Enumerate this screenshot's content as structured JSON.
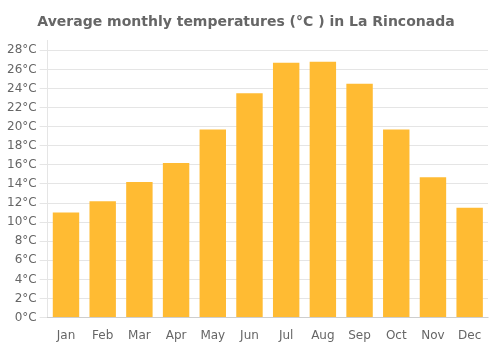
{
  "chart_data": {
    "type": "bar",
    "title": "Average monthly temperatures (°C ) in La Rinconada",
    "categories": [
      "Jan",
      "Feb",
      "Mar",
      "Apr",
      "May",
      "Jun",
      "Jul",
      "Aug",
      "Sep",
      "Oct",
      "Nov",
      "Dec"
    ],
    "values": [
      11.0,
      12.2,
      14.2,
      16.2,
      19.7,
      23.5,
      26.7,
      26.8,
      24.5,
      19.7,
      14.7,
      11.5
    ],
    "color": "#FFBB33",
    "ylim": [
      0,
      29
    ],
    "yticks": [
      {
        "value": 0,
        "label": "0°C"
      },
      {
        "value": 2,
        "label": "2°C"
      },
      {
        "value": 4,
        "label": "4°C"
      },
      {
        "value": 6,
        "label": "6°C"
      },
      {
        "value": 8,
        "label": "8°C"
      },
      {
        "value": 10,
        "label": "10°C"
      },
      {
        "value": 12,
        "label": "12°C"
      },
      {
        "value": 14,
        "label": "14°C"
      },
      {
        "value": 16,
        "label": "16°C"
      },
      {
        "value": 18,
        "label": "18°C"
      },
      {
        "value": 20,
        "label": "20°C"
      },
      {
        "value": 22,
        "label": "22°C"
      },
      {
        "value": 24,
        "label": "24°C"
      },
      {
        "value": 26,
        "label": "26°C"
      },
      {
        "value": 28,
        "label": "28°C"
      }
    ],
    "grid": true
  }
}
